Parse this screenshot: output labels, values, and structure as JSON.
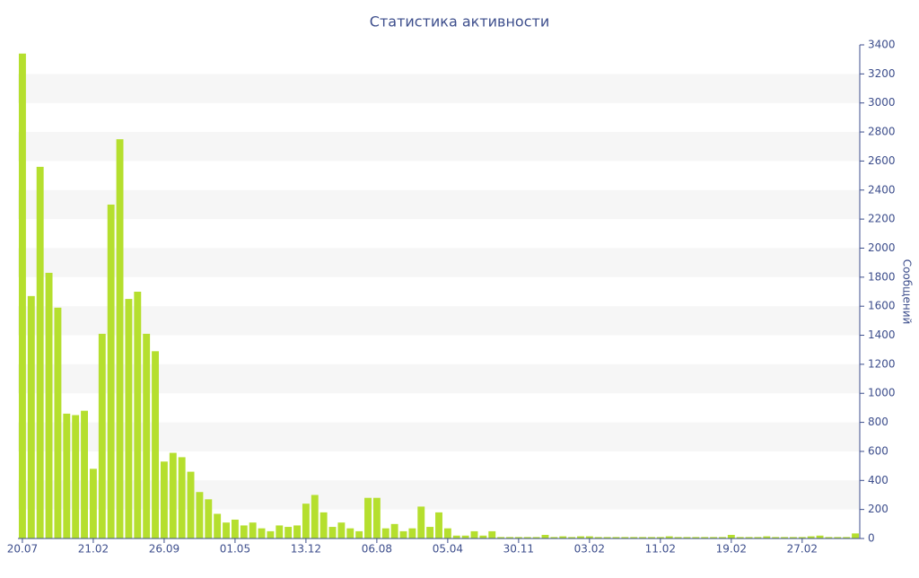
{
  "chart_data": {
    "type": "bar",
    "title": "Статистика активности",
    "y_axis_label": "Сообщений",
    "y_axis_side": "right",
    "color": "#b5df2e",
    "grid": true,
    "categories": [
      "20.07",
      null,
      null,
      null,
      null,
      null,
      null,
      null,
      "21.02",
      null,
      null,
      null,
      null,
      null,
      null,
      null,
      "26.09",
      null,
      null,
      null,
      null,
      null,
      null,
      null,
      "01.05",
      null,
      null,
      null,
      null,
      null,
      null,
      null,
      "13.12",
      null,
      null,
      null,
      null,
      null,
      null,
      null,
      "06.08",
      null,
      null,
      null,
      null,
      null,
      null,
      null,
      "05.04",
      null,
      null,
      null,
      null,
      null,
      null,
      null,
      "30.11",
      null,
      null,
      null,
      null,
      null,
      null,
      null,
      "03.02",
      null,
      null,
      null,
      null,
      null,
      null,
      null,
      "11.02",
      null,
      null,
      null,
      null,
      null,
      null,
      null,
      "19.02",
      null,
      null,
      null,
      null,
      null,
      null,
      null,
      "27.02",
      null,
      null,
      null,
      null,
      null,
      null
    ],
    "values": [
      3340,
      1670,
      2560,
      1830,
      1590,
      860,
      850,
      880,
      480,
      1410,
      2300,
      2750,
      1650,
      1700,
      1410,
      1290,
      530,
      590,
      560,
      460,
      320,
      270,
      170,
      110,
      130,
      90,
      110,
      70,
      50,
      90,
      80,
      90,
      240,
      300,
      180,
      80,
      110,
      70,
      50,
      280,
      280,
      70,
      100,
      50,
      70,
      220,
      80,
      180,
      70,
      20,
      20,
      50,
      20,
      50,
      10,
      10,
      10,
      10,
      10,
      25,
      10,
      15,
      10,
      15,
      15,
      10,
      10,
      10,
      10,
      10,
      10,
      10,
      10,
      15,
      10,
      10,
      10,
      10,
      10,
      10,
      25,
      10,
      10,
      10,
      15,
      10,
      10,
      10,
      10,
      15,
      20,
      10,
      10,
      10,
      35
    ],
    "ylim": [
      0,
      3400
    ],
    "yticks": [
      0,
      200,
      400,
      600,
      800,
      1000,
      1200,
      1400,
      1600,
      1800,
      2000,
      2200,
      2400,
      2600,
      2800,
      3000,
      3200,
      3400
    ]
  }
}
